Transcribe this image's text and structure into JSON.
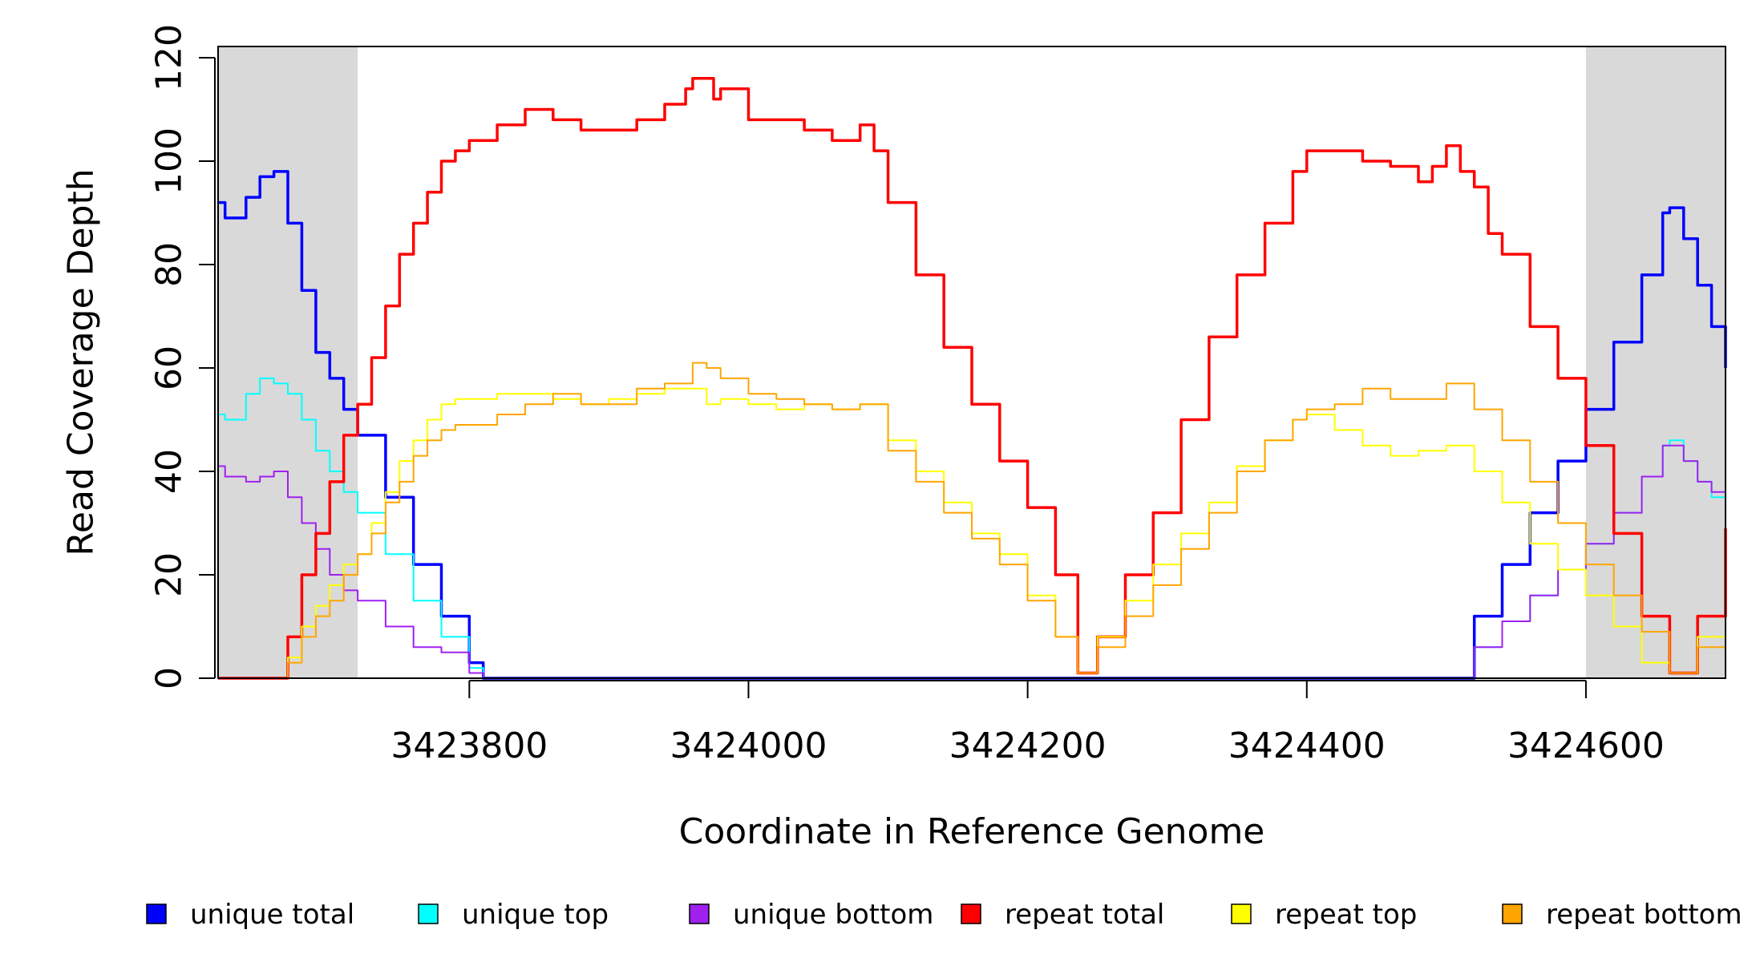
{
  "chart_data": {
    "type": "line",
    "xlabel": "Coordinate in Reference Genome",
    "ylabel": "Read Coverage Depth",
    "xlim": [
      3423620,
      3424700
    ],
    "ylim": [
      0,
      120
    ],
    "x_ticks": [
      3423800,
      3424000,
      3424200,
      3424400,
      3424600
    ],
    "y_ticks": [
      0,
      20,
      40,
      60,
      80,
      100,
      120
    ],
    "grid": false,
    "legend_position": "bottom",
    "shaded_regions": [
      [
        3423620,
        3423720
      ],
      [
        3424600,
        3424700
      ]
    ],
    "shade_color": "#d9d9d9",
    "series": [
      {
        "name": "unique total",
        "color": "#0000ff",
        "x": [
          3423620,
          3423625,
          3423640,
          3423650,
          3423660,
          3423670,
          3423680,
          3423690,
          3423700,
          3423710,
          3423720,
          3423740,
          3423760,
          3423780,
          3423800,
          3423810,
          3423900,
          3424100,
          3424236,
          3424400,
          3424500,
          3424520,
          3424540,
          3424560,
          3424580,
          3424600,
          3424620,
          3424640,
          3424655,
          3424660,
          3424670,
          3424680,
          3424690,
          3424700
        ],
        "y": [
          92,
          89,
          93,
          97,
          98,
          88,
          75,
          63,
          58,
          52,
          47,
          35,
          22,
          12,
          3,
          0,
          0,
          0,
          0,
          0,
          0,
          12,
          22,
          32,
          42,
          52,
          65,
          78,
          90,
          91,
          85,
          76,
          68,
          60
        ]
      },
      {
        "name": "unique top",
        "color": "#00ffff",
        "x": [
          3423620,
          3423625,
          3423640,
          3423650,
          3423660,
          3423670,
          3423680,
          3423690,
          3423700,
          3423710,
          3423720,
          3423740,
          3423760,
          3423780,
          3423800,
          3423810,
          3423900,
          3424100,
          3424236,
          3424400,
          3424500,
          3424520,
          3424540,
          3424560,
          3424580,
          3424600,
          3424620,
          3424640,
          3424655,
          3424660,
          3424670,
          3424680,
          3424690,
          3424700
        ],
        "y": [
          51,
          50,
          55,
          58,
          57,
          55,
          50,
          44,
          40,
          36,
          32,
          24,
          15,
          8,
          2,
          0,
          0,
          0,
          0,
          0,
          0,
          6,
          11,
          16,
          21,
          26,
          32,
          39,
          45,
          46,
          42,
          38,
          35,
          32
        ]
      },
      {
        "name": "unique bottom",
        "color": "#a020f0",
        "x": [
          3423620,
          3423625,
          3423640,
          3423650,
          3423660,
          3423670,
          3423680,
          3423690,
          3423700,
          3423710,
          3423720,
          3423740,
          3423760,
          3423780,
          3423800,
          3423810,
          3423900,
          3424100,
          3424236,
          3424400,
          3424500,
          3424520,
          3424540,
          3424560,
          3424580,
          3424600,
          3424620,
          3424640,
          3424655,
          3424660,
          3424670,
          3424680,
          3424690,
          3424700
        ],
        "y": [
          41,
          39,
          38,
          39,
          40,
          35,
          30,
          25,
          20,
          17,
          15,
          10,
          6,
          5,
          1,
          0,
          0,
          0,
          0,
          0,
          0,
          6,
          11,
          16,
          21,
          26,
          32,
          39,
          45,
          45,
          42,
          38,
          36,
          30
        ]
      },
      {
        "name": "repeat total",
        "color": "#ff0000",
        "x": [
          3423620,
          3423660,
          3423670,
          3423680,
          3423690,
          3423700,
          3423710,
          3423720,
          3423730,
          3423740,
          3423750,
          3423760,
          3423770,
          3423780,
          3423790,
          3423800,
          3423820,
          3423840,
          3423860,
          3423880,
          3423900,
          3423920,
          3423940,
          3423955,
          3423960,
          3423975,
          3423980,
          3424000,
          3424020,
          3424040,
          3424060,
          3424080,
          3424090,
          3424100,
          3424120,
          3424140,
          3424160,
          3424180,
          3424200,
          3424220,
          3424236,
          3424250,
          3424270,
          3424290,
          3424310,
          3424330,
          3424350,
          3424370,
          3424390,
          3424400,
          3424420,
          3424440,
          3424460,
          3424480,
          3424490,
          3424500,
          3424510,
          3424520,
          3424530,
          3424540,
          3424560,
          3424580,
          3424600,
          3424620,
          3424640,
          3424660,
          3424680,
          3424700
        ],
        "y": [
          0,
          0,
          8,
          20,
          28,
          38,
          47,
          53,
          62,
          72,
          82,
          88,
          94,
          100,
          102,
          104,
          107,
          110,
          108,
          106,
          106,
          108,
          111,
          114,
          116,
          112,
          114,
          108,
          108,
          106,
          104,
          107,
          102,
          92,
          78,
          64,
          53,
          42,
          33,
          20,
          1,
          8,
          20,
          32,
          50,
          66,
          78,
          88,
          98,
          102,
          102,
          100,
          99,
          96,
          99,
          103,
          98,
          95,
          86,
          82,
          68,
          58,
          45,
          28,
          12,
          1,
          12,
          29
        ]
      },
      {
        "name": "repeat top",
        "color": "#ffff00",
        "x": [
          3423620,
          3423660,
          3423670,
          3423680,
          3423690,
          3423700,
          3423710,
          3423720,
          3423730,
          3423740,
          3423750,
          3423760,
          3423770,
          3423780,
          3423790,
          3423800,
          3423820,
          3423840,
          3423860,
          3423880,
          3423900,
          3423920,
          3423940,
          3423960,
          3423970,
          3423980,
          3424000,
          3424020,
          3424040,
          3424060,
          3424080,
          3424100,
          3424120,
          3424140,
          3424160,
          3424180,
          3424200,
          3424220,
          3424236,
          3424250,
          3424270,
          3424290,
          3424310,
          3424330,
          3424350,
          3424370,
          3424390,
          3424400,
          3424420,
          3424440,
          3424460,
          3424480,
          3424500,
          3424520,
          3424540,
          3424560,
          3424580,
          3424600,
          3424620,
          3424640,
          3424660,
          3424680,
          3424700
        ],
        "y": [
          0,
          0,
          4,
          10,
          14,
          18,
          22,
          24,
          30,
          36,
          42,
          46,
          50,
          53,
          54,
          54,
          55,
          55,
          54,
          53,
          54,
          55,
          56,
          56,
          53,
          54,
          53,
          52,
          53,
          52,
          53,
          46,
          40,
          34,
          28,
          24,
          16,
          8,
          1,
          8,
          15,
          22,
          28,
          34,
          41,
          46,
          50,
          51,
          48,
          45,
          43,
          44,
          45,
          40,
          34,
          26,
          21,
          16,
          10,
          3,
          1,
          8,
          15
        ]
      },
      {
        "name": "repeat bottom",
        "color": "#ffa500",
        "x": [
          3423620,
          3423660,
          3423670,
          3423680,
          3423690,
          3423700,
          3423710,
          3423720,
          3423730,
          3423740,
          3423750,
          3423760,
          3423770,
          3423780,
          3423790,
          3423800,
          3423820,
          3423840,
          3423860,
          3423880,
          3423900,
          3423920,
          3423940,
          3423960,
          3423970,
          3423980,
          3424000,
          3424020,
          3424040,
          3424060,
          3424080,
          3424100,
          3424120,
          3424140,
          3424160,
          3424180,
          3424200,
          3424220,
          3424236,
          3424250,
          3424270,
          3424290,
          3424310,
          3424330,
          3424350,
          3424370,
          3424390,
          3424400,
          3424420,
          3424440,
          3424460,
          3424480,
          3424500,
          3424520,
          3424540,
          3424560,
          3424580,
          3424600,
          3424620,
          3424640,
          3424660,
          3424680,
          3424700
        ],
        "y": [
          0,
          0,
          3,
          8,
          12,
          15,
          20,
          24,
          28,
          34,
          38,
          43,
          46,
          48,
          49,
          49,
          51,
          53,
          55,
          53,
          53,
          56,
          57,
          61,
          60,
          58,
          55,
          54,
          53,
          52,
          53,
          44,
          38,
          32,
          27,
          22,
          15,
          8,
          1,
          6,
          12,
          18,
          25,
          32,
          40,
          46,
          50,
          52,
          53,
          56,
          54,
          54,
          57,
          52,
          46,
          38,
          30,
          22,
          16,
          9,
          1,
          6,
          14
        ]
      }
    ]
  }
}
